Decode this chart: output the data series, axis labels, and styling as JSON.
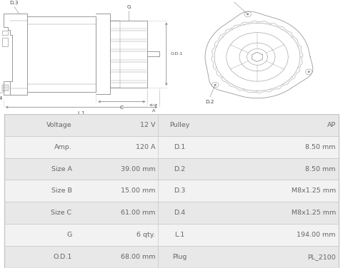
{
  "bg_color": "#ffffff",
  "table_border": "#cccccc",
  "text_color": "#666666",
  "diagram_color": "#999999",
  "dim_color": "#888888",
  "rows": [
    [
      "Voltage",
      "12 V",
      "Pulley",
      "AP"
    ],
    [
      "Amp.",
      "120 A",
      "D.1",
      "8.50 mm"
    ],
    [
      "Size A",
      "39.00 mm",
      "D.2",
      "8.50 mm"
    ],
    [
      "Size B",
      "15.00 mm",
      "D.3",
      "M8x1.25 mm"
    ],
    [
      "Size C",
      "61.00 mm",
      "D.4",
      "M8x1.25 mm"
    ],
    [
      "G",
      "6 qty.",
      "L.1",
      "194.00 mm"
    ],
    [
      "O.D.1",
      "68.00 mm",
      "Plug",
      "PL_2100"
    ]
  ],
  "table_split": 0.575,
  "font_size_table": 6.8,
  "font_size_label": 5.2
}
